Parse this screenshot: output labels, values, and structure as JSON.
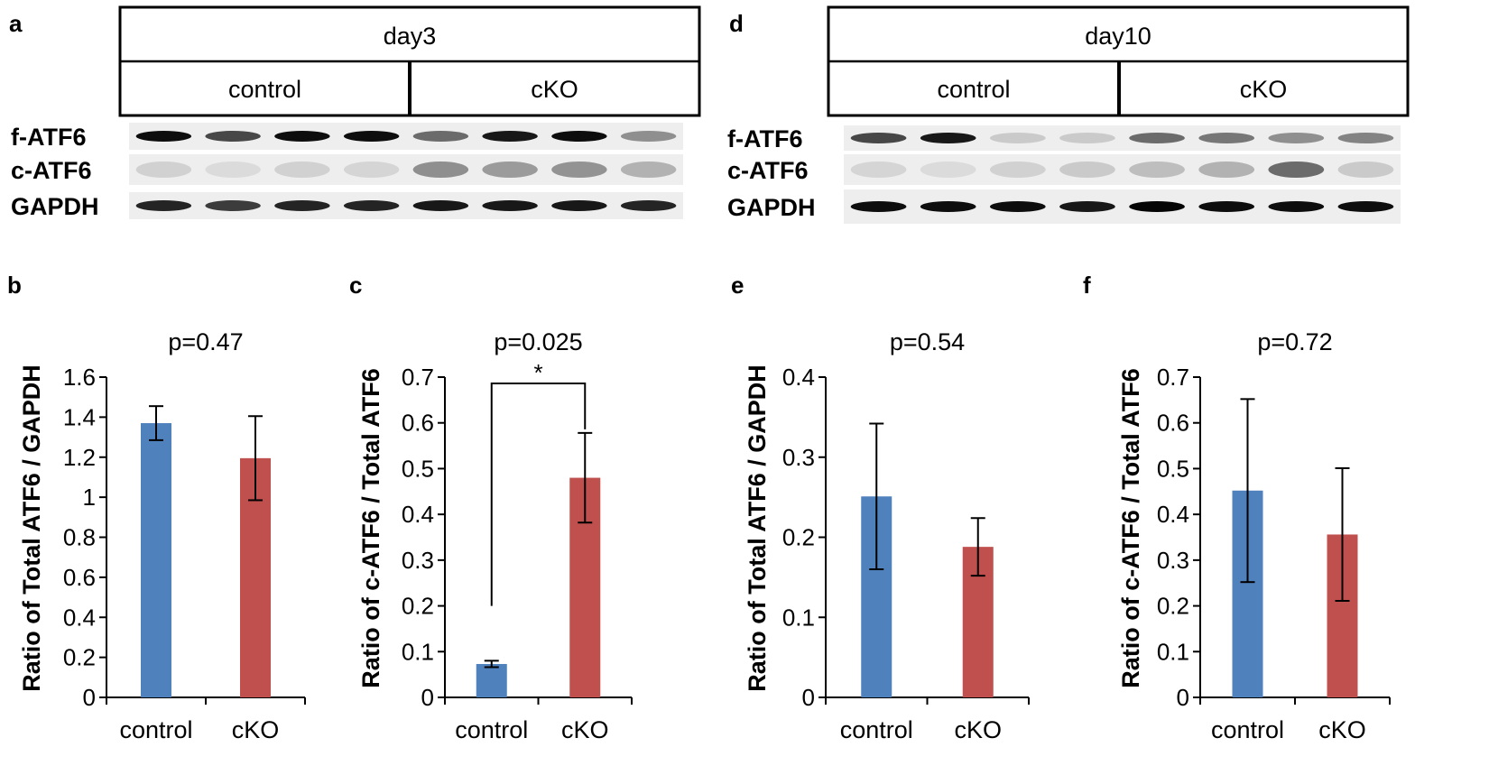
{
  "colors": {
    "control": "#4f81bd",
    "cko": "#c0504d",
    "axis": "#000000",
    "blot_bg": "#eeeeee"
  },
  "blots": [
    {
      "letter": "a",
      "header": "day3",
      "groups": [
        "control",
        "cKO"
      ],
      "rows": [
        "f-ATF6",
        "c-ATF6",
        "GAPDH"
      ],
      "band_intensity": {
        "f-ATF6": [
          0.95,
          0.7,
          0.95,
          0.95,
          0.55,
          0.9,
          0.95,
          0.4
        ],
        "c-ATF6": [
          0.12,
          0.08,
          0.12,
          0.1,
          0.4,
          0.35,
          0.38,
          0.25
        ],
        "GAPDH": [
          0.85,
          0.75,
          0.85,
          0.85,
          0.9,
          0.9,
          0.9,
          0.85
        ]
      }
    },
    {
      "letter": "d",
      "header": "day10",
      "groups": [
        "control",
        "cKO"
      ],
      "rows": [
        "f-ATF6",
        "c-ATF6",
        "GAPDH"
      ],
      "band_intensity": {
        "f-ATF6": [
          0.7,
          0.9,
          0.15,
          0.15,
          0.55,
          0.5,
          0.4,
          0.45
        ],
        "c-ATF6": [
          0.1,
          0.08,
          0.12,
          0.15,
          0.2,
          0.25,
          0.55,
          0.15
        ],
        "GAPDH": [
          0.95,
          0.95,
          0.95,
          0.9,
          0.98,
          0.95,
          0.95,
          0.95
        ]
      }
    }
  ],
  "chart_data": [
    {
      "letter": "b",
      "type": "bar",
      "title": "p=0.47",
      "ylabel": "Ratio of Total ATF6 / GAPDH",
      "categories": [
        "control",
        "cKO"
      ],
      "values": [
        1.37,
        1.195
      ],
      "errors": [
        0.085,
        0.21
      ],
      "ylim": [
        0,
        1.6
      ],
      "yticks": [
        "0",
        "0.2",
        "0.4",
        "0.6",
        "0.8",
        "1",
        "1.2",
        "1.4",
        "1.6"
      ],
      "significance": ""
    },
    {
      "letter": "c",
      "type": "bar",
      "title": "p=0.025",
      "ylabel": "Ratio of c-ATF6 / Total ATF6",
      "categories": [
        "control",
        "cKO"
      ],
      "values": [
        0.073,
        0.48
      ],
      "errors": [
        0.007,
        0.098
      ],
      "ylim": [
        0,
        0.7
      ],
      "yticks": [
        "0",
        "0.1",
        "0.2",
        "0.3",
        "0.4",
        "0.5",
        "0.6",
        "0.7"
      ],
      "significance": "*"
    },
    {
      "letter": "e",
      "type": "bar",
      "title": "p=0.54",
      "ylabel": "Ratio of Total ATF6 / GAPDH",
      "categories": [
        "control",
        "cKO"
      ],
      "values": [
        0.251,
        0.188
      ],
      "errors": [
        0.091,
        0.036
      ],
      "ylim": [
        0,
        0.4
      ],
      "yticks": [
        "0",
        "0.1",
        "0.2",
        "0.3",
        "0.4"
      ],
      "significance": ""
    },
    {
      "letter": "f",
      "type": "bar",
      "title": "p=0.72",
      "ylabel": "Ratio of c-ATF6 / Total ATF6",
      "categories": [
        "control",
        "cKO"
      ],
      "values": [
        0.452,
        0.356
      ],
      "errors": [
        0.2,
        0.145
      ],
      "ylim": [
        0,
        0.7
      ],
      "yticks": [
        "0",
        "0.1",
        "0.2",
        "0.3",
        "0.4",
        "0.5",
        "0.6",
        "0.7"
      ],
      "significance": ""
    }
  ]
}
